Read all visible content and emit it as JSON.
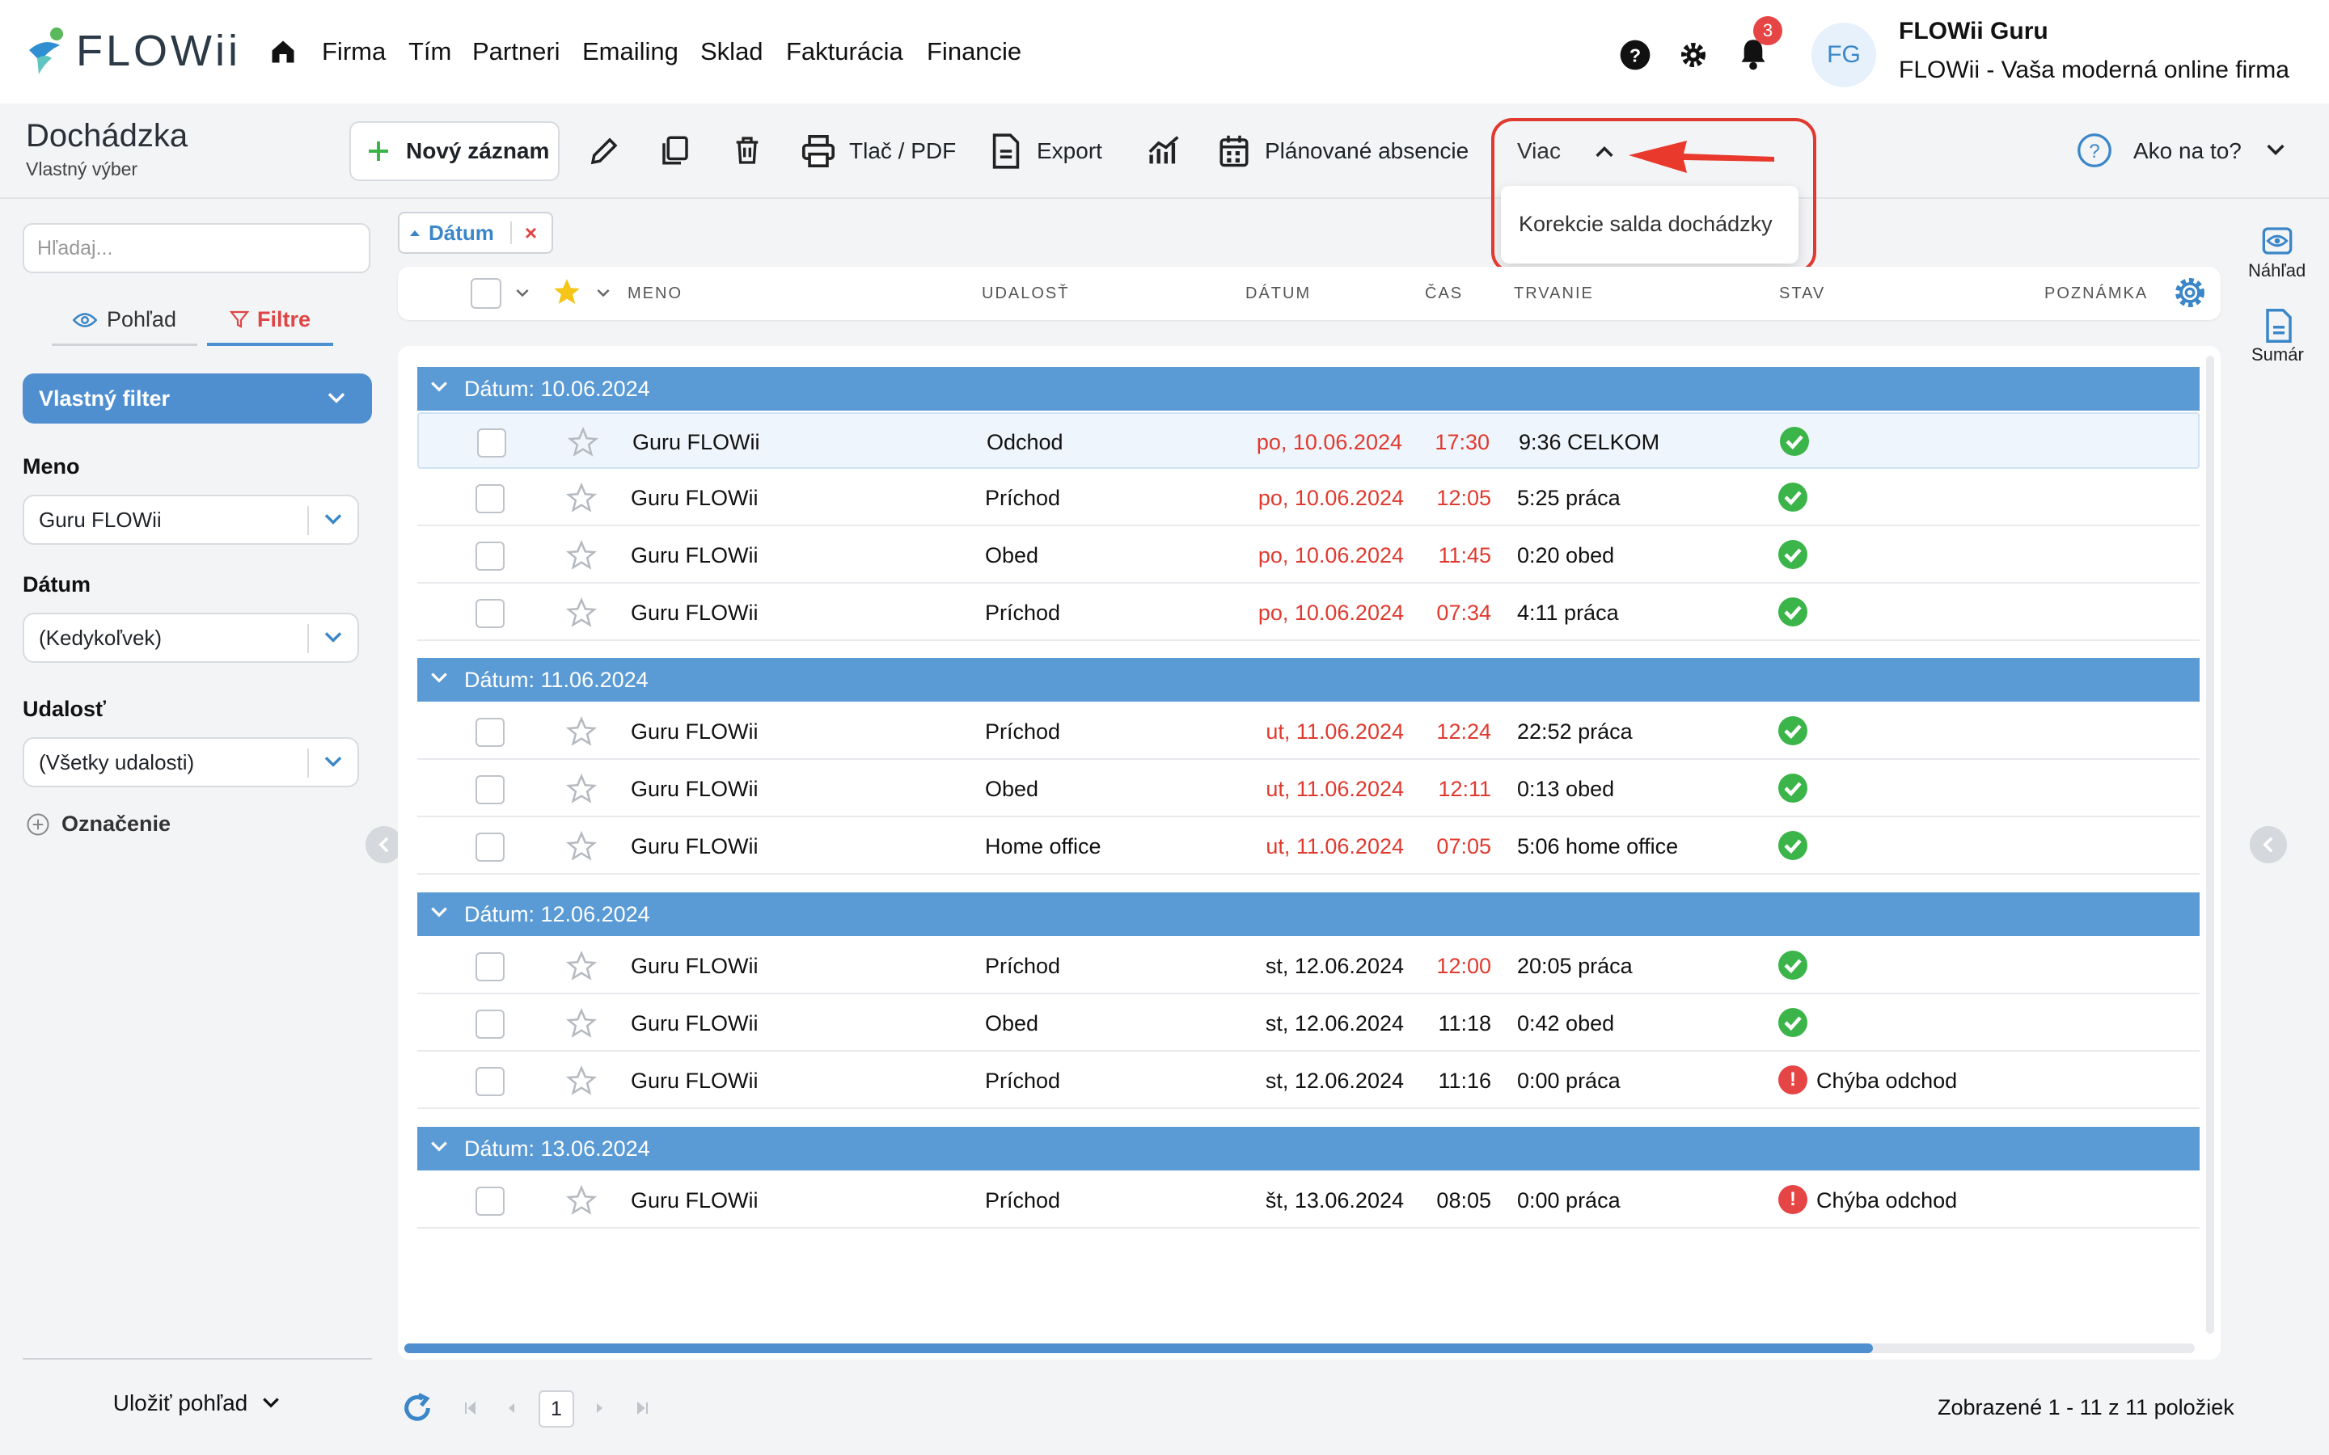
{
  "app": {
    "logo": "FLOWii",
    "nav": [
      "Firma",
      "Tím",
      "Partneri",
      "Emailing",
      "Sklad",
      "Fakturácia",
      "Financie"
    ],
    "notification_count": "3",
    "avatar_initials": "FG",
    "user_name": "FLOWii Guru",
    "company": "FLOWii - Vaša moderná online firma"
  },
  "page": {
    "title": "Dochádzka",
    "subtitle": "Vlastný výber"
  },
  "toolbar": {
    "new_record": "Nový záznam",
    "print": "Tlač / PDF",
    "export": "Export",
    "planned": "Plánované absencie",
    "more": "Viac",
    "more_menu": [
      "Korekcie salda dochádzky"
    ],
    "help": "Ako na to?"
  },
  "sidebar": {
    "search_placeholder": "Hľadaj...",
    "tab_view": "Pohľad",
    "tab_filters": "Filtre",
    "custom_filter": "Vlastný filter",
    "filters": [
      {
        "label": "Meno",
        "value": "Guru FLOWii"
      },
      {
        "label": "Dátum",
        "value": "(Kedykoľvek)"
      },
      {
        "label": "Udalosť",
        "value": "(Všetky udalosti)"
      }
    ],
    "tag_label": "Označenie",
    "save_view": "Uložiť pohľad"
  },
  "grid": {
    "chip": "Dátum",
    "columns": [
      "MENO",
      "UDALOSŤ",
      "DÁTUM",
      "ČAS",
      "TRVANIE",
      "STAV",
      "POZNÁMKA"
    ],
    "groups": [
      {
        "label": "Dátum: 10.06.2024",
        "rows": [
          {
            "name": "Guru FLOWii",
            "event": "Odchod",
            "date": "po, 10.06.2024",
            "time": "17:30",
            "duration": "9:36 CELKOM",
            "status": "ok",
            "status_text": "",
            "date_red": true,
            "time_red": true
          },
          {
            "name": "Guru FLOWii",
            "event": "Príchod",
            "date": "po, 10.06.2024",
            "time": "12:05",
            "duration": "5:25 práca",
            "status": "ok",
            "status_text": "",
            "date_red": true,
            "time_red": true
          },
          {
            "name": "Guru FLOWii",
            "event": "Obed",
            "date": "po, 10.06.2024",
            "time": "11:45",
            "duration": "0:20 obed",
            "status": "ok",
            "status_text": "",
            "date_red": true,
            "time_red": true
          },
          {
            "name": "Guru FLOWii",
            "event": "Príchod",
            "date": "po, 10.06.2024",
            "time": "07:34",
            "duration": "4:11 práca",
            "status": "ok",
            "status_text": "",
            "date_red": true,
            "time_red": true
          }
        ]
      },
      {
        "label": "Dátum: 11.06.2024",
        "rows": [
          {
            "name": "Guru FLOWii",
            "event": "Príchod",
            "date": "ut, 11.06.2024",
            "time": "12:24",
            "duration": "22:52 práca",
            "status": "ok",
            "status_text": "",
            "date_red": true,
            "time_red": true
          },
          {
            "name": "Guru FLOWii",
            "event": "Obed",
            "date": "ut, 11.06.2024",
            "time": "12:11",
            "duration": "0:13 obed",
            "status": "ok",
            "status_text": "",
            "date_red": true,
            "time_red": true
          },
          {
            "name": "Guru FLOWii",
            "event": "Home office",
            "date": "ut, 11.06.2024",
            "time": "07:05",
            "duration": "5:06 home office",
            "status": "ok",
            "status_text": "",
            "date_red": true,
            "time_red": true
          }
        ]
      },
      {
        "label": "Dátum: 12.06.2024",
        "rows": [
          {
            "name": "Guru FLOWii",
            "event": "Príchod",
            "date": "st, 12.06.2024",
            "time": "12:00",
            "duration": "20:05 práca",
            "status": "ok",
            "status_text": "",
            "date_red": false,
            "time_red": true
          },
          {
            "name": "Guru FLOWii",
            "event": "Obed",
            "date": "st, 12.06.2024",
            "time": "11:18",
            "duration": "0:42 obed",
            "status": "ok",
            "status_text": "",
            "date_red": false,
            "time_red": false
          },
          {
            "name": "Guru FLOWii",
            "event": "Príchod",
            "date": "st, 12.06.2024",
            "time": "11:16",
            "duration": "0:00 práca",
            "status": "error",
            "status_text": "Chýba odchod",
            "date_red": false,
            "time_red": false
          }
        ]
      },
      {
        "label": "Dátum: 13.06.2024",
        "rows": [
          {
            "name": "Guru FLOWii",
            "event": "Príchod",
            "date": "št, 13.06.2024",
            "time": "08:05",
            "duration": "0:00 práca",
            "status": "error",
            "status_text": "Chýba odchod",
            "date_red": false,
            "time_red": false
          }
        ]
      }
    ]
  },
  "pager": {
    "page": "1",
    "info": "Zobrazené 1 - 11 z 11 položiek"
  },
  "right_panel": {
    "preview": "Náhľad",
    "summary": "Sumár"
  },
  "colors": {
    "accent": "#4f8fd0",
    "group": "#5b9bd5",
    "ok": "#3bb54a",
    "error": "#e64545",
    "highlight": "#e03a2f"
  }
}
